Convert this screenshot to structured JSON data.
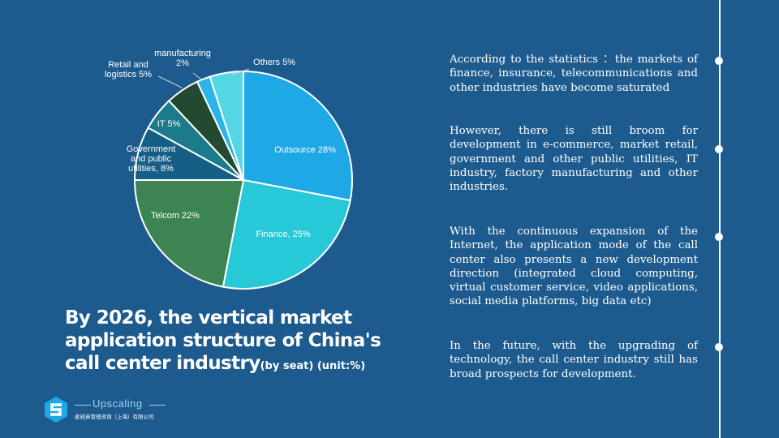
{
  "chart_data": {
    "type": "pie",
    "title": "By 2026, the vertical market application structure of China's call center industry",
    "subtitle": "(by seat) (unit:%)",
    "slices": [
      {
        "label": [
          "Outsource 28%"
        ],
        "value": 28,
        "color": "#1ea9e6"
      },
      {
        "label": [
          "Finance, 25%"
        ],
        "value": 25,
        "color": "#27c8d8"
      },
      {
        "label": [
          "Telcom 22%"
        ],
        "value": 22,
        "color": "#3c8552"
      },
      {
        "label": [
          "Government",
          "and public",
          "utilities, 8%"
        ],
        "value": 8,
        "color": "#155e86"
      },
      {
        "label": [
          "IT 5%"
        ],
        "value": 5,
        "color": "#1b7b8a"
      },
      {
        "label": [
          "Retail and",
          "logistics 5%"
        ],
        "value": 5,
        "color": "#234a31"
      },
      {
        "label": [
          "manufacturing",
          "2%"
        ],
        "value": 2,
        "color": "#2ab4e8"
      },
      {
        "label": [
          "Others 5%"
        ],
        "value": 5,
        "color": "#54d6e4"
      }
    ]
  },
  "title": {
    "main": "By 2026, the vertical market application structure of China's call center industry",
    "unit": "(by seat) (unit:%)"
  },
  "paragraphs": [
    "According to the statistics ：the markets of finance, insurance, telecommunications and other industries have become saturated",
    "However,  there is still broom for development in e-commerce, market retail, government and other public utilities, IT industry, factory manufacturing and other industries.",
    "With the continuous expansion of the Internet, the application mode of the call center also presents a new development direction (integrated cloud computing, virtual customer service, video applications, social media platforms, big data etc)",
    "In the future, with the upgrading of technology, the call center industry still has broad prospects for development."
  ],
  "logo": {
    "name": "Upscaling",
    "subtitle": "麦锐英管理咨询（上海）有限公司"
  }
}
